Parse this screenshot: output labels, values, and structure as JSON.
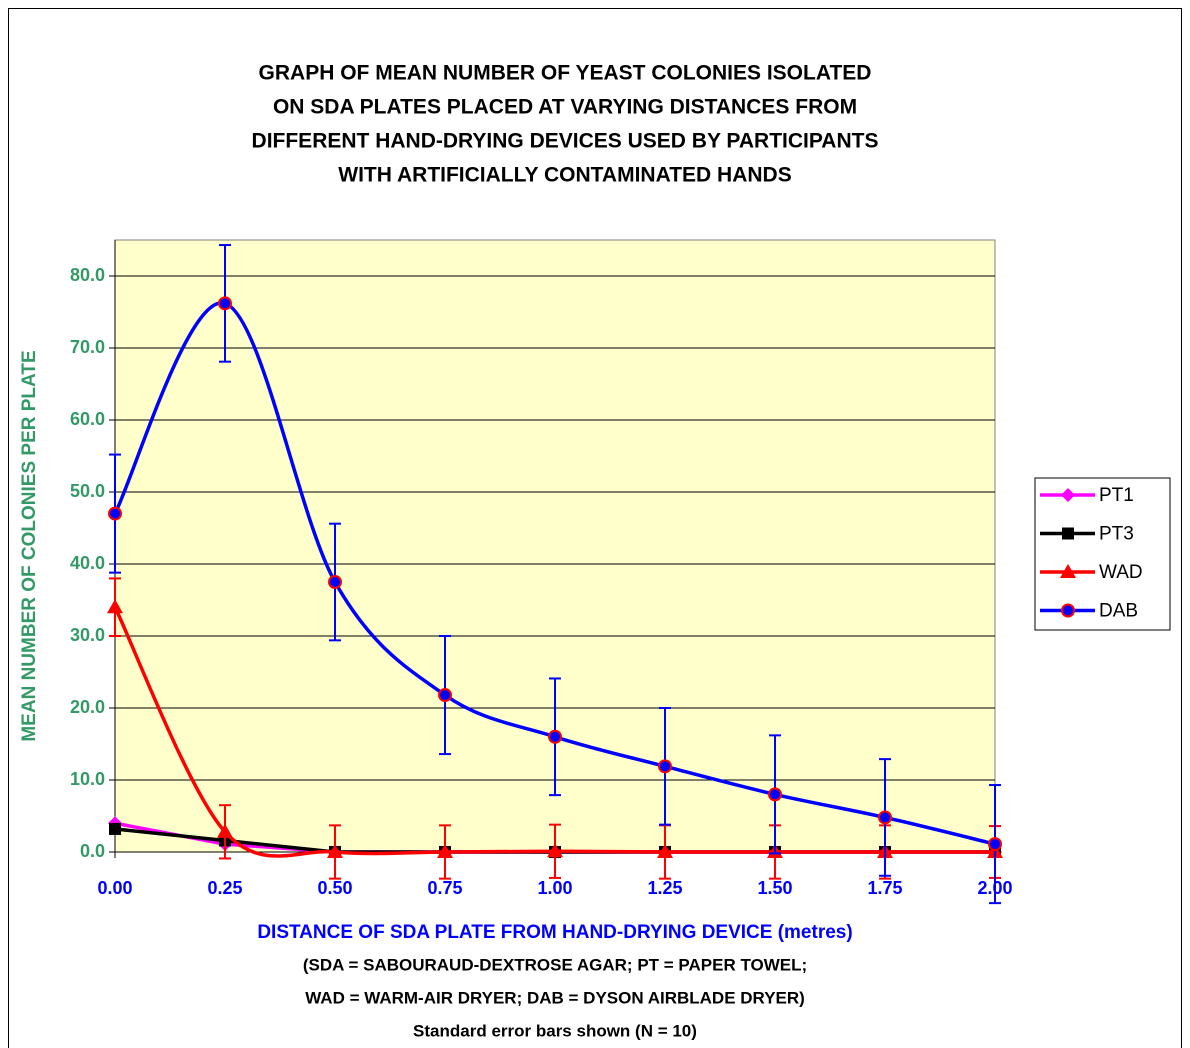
{
  "chart_data": {
    "type": "line",
    "title": [
      "GRAPH OF MEAN NUMBER OF YEAST COLONIES ISOLATED",
      "ON SDA PLATES PLACED AT VARYING DISTANCES FROM",
      "DIFFERENT HAND-DRYING DEVICES USED BY PARTICIPANTS",
      "WITH ARTIFICIALLY CONTAMINATED HANDS"
    ],
    "x_label": "DISTANCE OF SDA PLATE FROM HAND-DRYING DEVICE (metres)",
    "y_label": "MEAN NUMBER OF COLONIES PER PLATE",
    "notes": [
      "(SDA = SABOURAUD-DEXTROSE AGAR; PT = PAPER TOWEL;",
      "WAD = WARM-AIR DRYER; DAB = DYSON AIRBLADE DRYER)",
      "Standard error bars shown   (N = 10)"
    ],
    "x": [
      0,
      0.25,
      0.5,
      0.75,
      1,
      1.25,
      1.5,
      1.75,
      2
    ],
    "xlim": [
      0,
      2
    ],
    "xticks": [
      {
        "value": 0,
        "label": "0.00"
      },
      {
        "value": 0.25,
        "label": "0.25"
      },
      {
        "value": 0.5,
        "label": "0.50"
      },
      {
        "value": 0.75,
        "label": "0.75"
      },
      {
        "value": 1,
        "label": "1.00"
      },
      {
        "value": 1.25,
        "label": "1.25"
      },
      {
        "value": 1.5,
        "label": "1.50"
      },
      {
        "value": 1.75,
        "label": "1.75"
      },
      {
        "value": 2,
        "label": "2.00"
      }
    ],
    "ylim": [
      0,
      85
    ],
    "yticks": [
      {
        "value": 0,
        "label": "0.0"
      },
      {
        "value": 10,
        "label": "10.0"
      },
      {
        "value": 20,
        "label": "20.0"
      },
      {
        "value": 30,
        "label": "30.0"
      },
      {
        "value": 40,
        "label": "40.0"
      },
      {
        "value": 50,
        "label": "50.0"
      },
      {
        "value": 60,
        "label": "60.0"
      },
      {
        "value": 70,
        "label": "70.0"
      },
      {
        "value": 80,
        "label": "80.0"
      }
    ],
    "grid": true,
    "legend": "right",
    "series": [
      {
        "name": "PT1",
        "color": "#ff00ff",
        "marker": "diamond",
        "smooth": false,
        "values": [
          4.0,
          1.1,
          0,
          0,
          0,
          0,
          0,
          0,
          0
        ]
      },
      {
        "name": "PT3",
        "color": "#000000",
        "marker": "square",
        "smooth": false,
        "values": [
          3.2,
          1.6,
          0,
          0,
          0,
          0,
          0,
          0,
          0
        ]
      },
      {
        "name": "WAD",
        "color": "#ff0000",
        "marker": "triangle",
        "smooth": true,
        "values": [
          34.0,
          2.8,
          0,
          0,
          0.1,
          0,
          0,
          0,
          0
        ],
        "errors": [
          4.0,
          3.7,
          3.7,
          3.7,
          3.7,
          3.7,
          3.7,
          3.7,
          3.6
        ]
      },
      {
        "name": "DAB",
        "color": "#0000ff",
        "marker": "circle",
        "marker_edge": "#ff0000",
        "smooth": true,
        "values": [
          47.0,
          76.2,
          37.5,
          21.8,
          16.0,
          11.9,
          8.0,
          4.8,
          1.1
        ],
        "errors": [
          8.2,
          8.1,
          8.1,
          8.2,
          8.1,
          8.1,
          8.2,
          8.1,
          8.2
        ]
      }
    ]
  }
}
